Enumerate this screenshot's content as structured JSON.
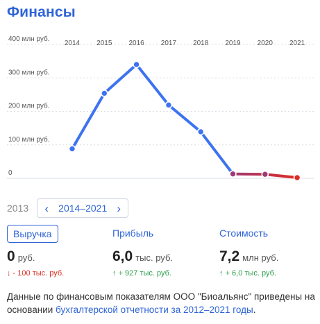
{
  "title": "Финансы",
  "chart_data": {
    "type": "line",
    "x": [
      "2014",
      "2015",
      "2016",
      "2017",
      "2018",
      "2019",
      "2020",
      "2021"
    ],
    "series": [
      {
        "values": [
          88,
          254,
          340,
          219,
          139,
          13,
          12,
          2
        ]
      }
    ],
    "ytick_values": [
      0,
      100,
      200,
      300,
      400
    ],
    "ytick_labels": [
      "0",
      "100 млн руб.",
      "200 млн руб.",
      "300 млн руб.",
      "400 млн руб."
    ],
    "ylim": [
      0,
      400
    ],
    "colors": {
      "line": "#3d73f0",
      "tail": "#a03a74",
      "last_point": "#e02a22",
      "grid": "#d9dde6"
    }
  },
  "range": {
    "start_year": "2013",
    "label": "2014–2021",
    "prev_icon": "chevron-left-icon",
    "next_icon": "chevron-right-icon"
  },
  "metrics": [
    {
      "tab": "Выручка",
      "value": "0",
      "unit": "руб.",
      "delta_arrow": "↓",
      "delta": "- 100 тыс. руб.",
      "direction": "down"
    },
    {
      "tab": "Прибыль",
      "value": "6,0",
      "unit": "тыс. руб.",
      "delta_arrow": "↑",
      "delta": "+ 927 тыс. руб.",
      "direction": "up"
    },
    {
      "tab": "Стоимость",
      "value": "7,2",
      "unit": "млн руб.",
      "delta_arrow": "↑",
      "delta": "+ 6,0 тыс. руб.",
      "direction": "up"
    }
  ],
  "note": {
    "text": "Данные по финансовым показателям ООО \"Биоальянс\" приведены на основании ",
    "link": "бухгалтерской отчетности за 2012–2021 годы",
    "end": "."
  }
}
